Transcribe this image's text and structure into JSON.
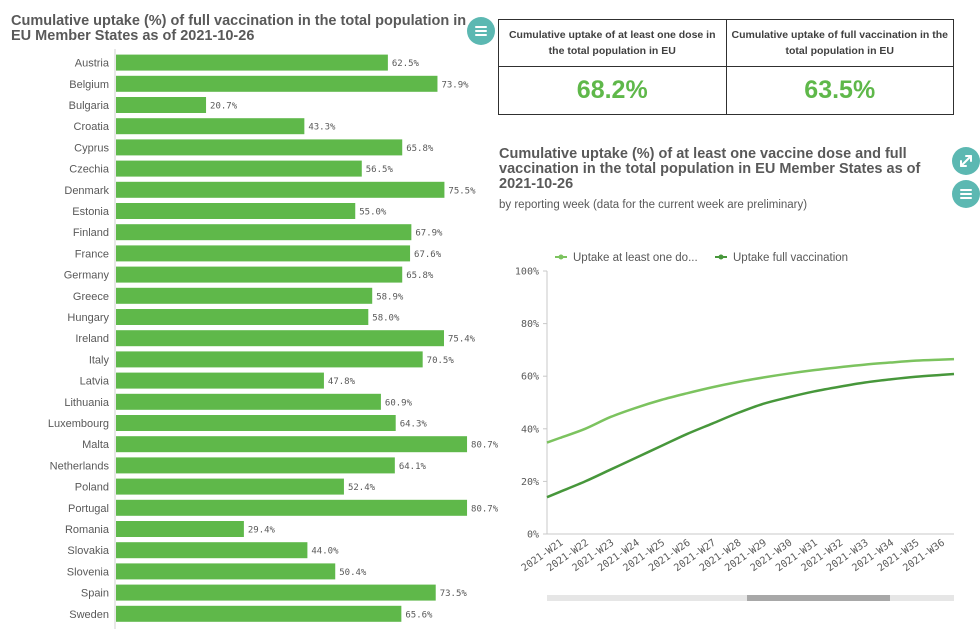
{
  "left_panel": {
    "title": "Cumulative uptake (%) of full vaccination in the total population in EU Member States as of 2021-10-26"
  },
  "kpis": [
    {
      "label": "Cumulative uptake of at least one dose in the total population in EU",
      "value": "68.2%"
    },
    {
      "label": "Cumulative uptake of full vaccination in the total population in EU",
      "value": "63.5%"
    }
  ],
  "right_panel": {
    "title": "Cumulative uptake (%) of at least one vaccine dose and full vaccination in the total population in EU Member States as of 2021-10-26",
    "subtitle": "by reporting week (data for the current week are preliminary)"
  },
  "colors": {
    "bar": "#5fb84a",
    "line_one_dose": "#7cc35f",
    "line_full": "#47973b",
    "teal_button": "#5cb8b2"
  },
  "icons": {
    "menu": "hamburger-icon",
    "expand": "expand-icon"
  },
  "chart_data": [
    {
      "type": "bar",
      "orientation": "horizontal",
      "categories": [
        "Austria",
        "Belgium",
        "Bulgaria",
        "Croatia",
        "Cyprus",
        "Czechia",
        "Denmark",
        "Estonia",
        "Finland",
        "France",
        "Germany",
        "Greece",
        "Hungary",
        "Ireland",
        "Italy",
        "Latvia",
        "Lithuania",
        "Luxembourg",
        "Malta",
        "Netherlands",
        "Poland",
        "Portugal",
        "Romania",
        "Slovakia",
        "Slovenia",
        "Spain",
        "Sweden"
      ],
      "values": [
        62.5,
        73.9,
        20.7,
        43.3,
        65.8,
        56.5,
        75.5,
        55.0,
        67.9,
        67.6,
        65.8,
        58.9,
        58.0,
        75.4,
        70.5,
        47.8,
        60.9,
        64.3,
        80.7,
        64.1,
        52.4,
        80.7,
        29.4,
        44.0,
        50.4,
        73.5,
        65.6
      ],
      "value_labels": [
        "62.5%",
        "73.9%",
        "20.7%",
        "43.3%",
        "65.8%",
        "56.5%",
        "75.5%",
        "55.0%",
        "67.9%",
        "67.6%",
        "65.8%",
        "58.9%",
        "58.0%",
        "75.4%",
        "70.5%",
        "47.8%",
        "60.9%",
        "64.3%",
        "80.7%",
        "64.1%",
        "52.4%",
        "80.7%",
        "29.4%",
        "44.0%",
        "50.4%",
        "73.5%",
        "65.6%"
      ],
      "xlim": [
        0,
        100
      ]
    },
    {
      "type": "line",
      "x": [
        "2021-W21",
        "2021-W22",
        "2021-W23",
        "2021-W24",
        "2021-W25",
        "2021-W26",
        "2021-W27",
        "2021-W28",
        "2021-W29",
        "2021-W30",
        "2021-W31",
        "2021-W32",
        "2021-W33",
        "2021-W34",
        "2021-W35",
        "2021-W36"
      ],
      "series": [
        {
          "name": "Uptake at least one do...",
          "values": [
            36.5,
            40.0,
            44.5,
            48.0,
            51.0,
            53.5,
            55.8,
            57.8,
            59.5,
            61.0,
            62.3,
            63.4,
            64.4,
            65.2,
            65.9,
            66.3
          ]
        },
        {
          "name": "Uptake full vaccination",
          "values": [
            16.0,
            20.0,
            24.5,
            29.0,
            33.5,
            38.0,
            42.0,
            46.0,
            49.5,
            52.0,
            54.2,
            56.0,
            57.6,
            58.8,
            59.8,
            60.5
          ]
        }
      ],
      "ylim": [
        0,
        100
      ],
      "yticks": [
        "0%",
        "20%",
        "40%",
        "60%",
        "80%",
        "100%"
      ],
      "legend_position": "top",
      "grid": false
    }
  ]
}
